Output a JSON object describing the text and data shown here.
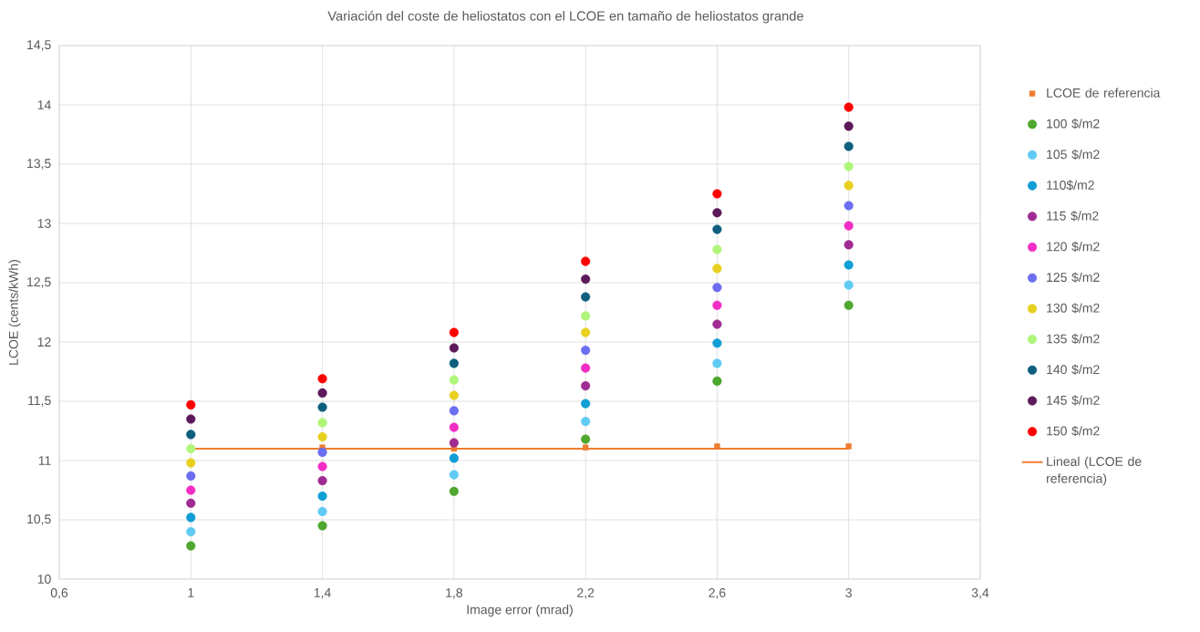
{
  "chart_data": {
    "type": "scatter",
    "title": "Variación del coste de heliostatos con el LCOE en tamaño de heliostatos grande",
    "xlabel": "Image error (mrad)",
    "ylabel": "LCOE (cents/kWh)",
    "x": [
      1,
      1.4,
      1.8,
      2.2,
      2.6,
      3
    ],
    "xlim": [
      0.6,
      3.4
    ],
    "ylim": [
      10,
      14.5
    ],
    "xticks": [
      {
        "value": 0.6,
        "label": "0,6"
      },
      1,
      {
        "value": 1.4,
        "label": "1,4"
      },
      {
        "value": 1.8,
        "label": "1,8"
      },
      {
        "value": 2.2,
        "label": "2,2"
      },
      {
        "value": 2.6,
        "label": "2,6"
      },
      3,
      {
        "value": 3.4,
        "label": "3,4"
      }
    ],
    "yticks": [
      10,
      {
        "value": 10.5,
        "label": "10,5"
      },
      11,
      {
        "value": 11.5,
        "label": "11,5"
      },
      12,
      {
        "value": 12.5,
        "label": "12,5"
      },
      13,
      {
        "value": 13.5,
        "label": "13,5"
      },
      14,
      {
        "value": 14.5,
        "label": "14,5"
      }
    ],
    "grid": true,
    "legend": "right",
    "marker": "circle",
    "series": [
      {
        "name": "LCOE de referencia",
        "color": "#ed7d31",
        "marker": "square",
        "values": [
          null,
          11.11,
          11.1,
          11.11,
          11.12,
          11.12
        ]
      },
      {
        "name": "100 $/m2",
        "color": "#4ea72e",
        "values": [
          10.28,
          10.45,
          10.74,
          11.18,
          11.67,
          12.31
        ]
      },
      {
        "name": "105 $/m2",
        "color": "#61cbf3",
        "values": [
          10.4,
          10.57,
          10.88,
          11.33,
          11.82,
          12.48
        ]
      },
      {
        "name": "110$/m2",
        "color": "#0f9ed5",
        "values": [
          10.52,
          10.7,
          11.02,
          11.48,
          11.99,
          12.65
        ]
      },
      {
        "name": "115 $/m2",
        "color": "#a02b93",
        "values": [
          10.64,
          10.83,
          11.15,
          11.63,
          12.15,
          12.82
        ]
      },
      {
        "name": "120 $/m2",
        "color": "#f22dc4",
        "values": [
          10.75,
          10.95,
          11.28,
          11.78,
          12.31,
          12.98
        ]
      },
      {
        "name": "125 $/m2",
        "color": "#6b6ef0",
        "values": [
          10.87,
          11.07,
          11.42,
          11.93,
          12.46,
          13.15
        ]
      },
      {
        "name": "130 $/m2",
        "color": "#e8d020",
        "values": [
          10.98,
          11.2,
          11.55,
          12.08,
          12.62,
          13.32
        ]
      },
      {
        "name": "135 $/m2",
        "color": "#b0f57a",
        "values": [
          11.1,
          11.32,
          11.68,
          12.22,
          12.78,
          13.48
        ]
      },
      {
        "name": "140 $/m2",
        "color": "#0e5f7e",
        "values": [
          11.22,
          11.45,
          11.82,
          12.38,
          12.95,
          13.65
        ]
      },
      {
        "name": "145  $/m2",
        "color": "#5c1a5a",
        "values": [
          11.35,
          11.57,
          11.95,
          12.53,
          13.09,
          13.82
        ]
      },
      {
        "name": "150 $/m2",
        "color": "#ff0000",
        "values": [
          11.47,
          11.69,
          12.08,
          12.68,
          13.25,
          13.98
        ]
      },
      {
        "name": "Lineal (LCOE de referencia)",
        "type": "line",
        "color": "#ed7d31",
        "marker": "none",
        "x": [
          1,
          3
        ],
        "values": [
          11.1,
          11.1
        ]
      }
    ]
  }
}
